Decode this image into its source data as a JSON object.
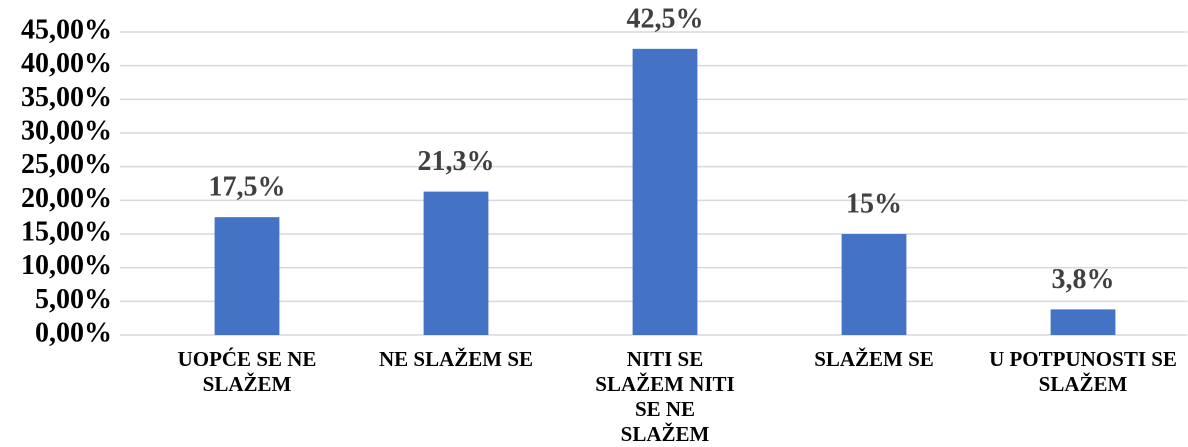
{
  "chart_data": {
    "type": "bar",
    "categories": [
      "UOPĆE SE NE SLAŽEM",
      "NE SLAŽEM SE",
      "NITI SE SLAŽEM NITI SE NE SLAŽEM",
      "SLAŽEM SE",
      "U POTPUNOSTI SE SLAŽEM"
    ],
    "values": [
      17.5,
      21.3,
      42.5,
      15,
      3.8
    ],
    "value_labels": [
      "17,5%",
      "21,3%",
      "42,5%",
      "15%",
      "3,8%"
    ],
    "color": "#4472c4",
    "ylim": [
      0,
      45
    ],
    "yticks": [
      {
        "value": 0,
        "label": "0,00%"
      },
      {
        "value": 5,
        "label": "5,00%"
      },
      {
        "value": 10,
        "label": "10,00%"
      },
      {
        "value": 15,
        "label": "15,00%"
      },
      {
        "value": 20,
        "label": "20,00%"
      },
      {
        "value": 25,
        "label": "25,00%"
      },
      {
        "value": 30,
        "label": "30,00%"
      },
      {
        "value": 35,
        "label": "35,00%"
      },
      {
        "value": 40,
        "label": "40,00%"
      },
      {
        "value": 45,
        "label": "45,00%"
      }
    ],
    "grid": true
  }
}
